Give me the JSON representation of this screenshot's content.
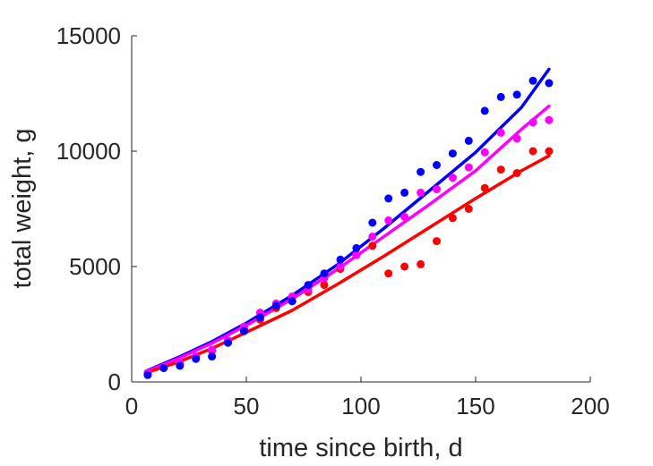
{
  "chart_data": {
    "type": "scatter",
    "xlabel": "time since birth, d",
    "ylabel": "total weight, g",
    "xlim": [
      0,
      200
    ],
    "ylim": [
      0,
      15000
    ],
    "x_ticks": [
      0,
      50,
      100,
      150,
      200
    ],
    "y_ticks": [
      0,
      5000,
      10000,
      15000
    ],
    "grid": false,
    "legend": "none",
    "series": [
      {
        "color": "#0000ff",
        "points": {
          "x": [
            7,
            14,
            21,
            28,
            35,
            42,
            49,
            56,
            63,
            70,
            77,
            84,
            91,
            98,
            105,
            112,
            119,
            126,
            133,
            140,
            147,
            154,
            161,
            168,
            175,
            182
          ],
          "y": [
            300,
            600,
            700,
            1000,
            1100,
            1700,
            2200,
            2800,
            3300,
            3500,
            4200,
            4700,
            5300,
            5800,
            6900,
            7950,
            8200,
            9100,
            9400,
            9900,
            10450,
            11750,
            12350,
            12450,
            13050,
            12950
          ]
        },
        "fit": {
          "x": [
            7,
            20,
            35,
            50,
            70,
            90,
            110,
            130,
            150,
            170,
            182
          ],
          "y": [
            500,
            1050,
            1750,
            2550,
            3750,
            5100,
            6650,
            8300,
            9950,
            11900,
            13550
          ]
        }
      },
      {
        "color": "#ff00ff",
        "points": {
          "x": [
            7,
            14,
            21,
            28,
            35,
            42,
            49,
            56,
            63,
            70,
            77,
            84,
            91,
            98,
            105,
            112,
            119,
            126,
            133,
            140,
            147,
            154,
            161,
            168,
            175,
            182
          ],
          "y": [
            400,
            650,
            800,
            1100,
            1400,
            1800,
            2400,
            3000,
            3400,
            3700,
            4000,
            4500,
            5000,
            5500,
            6300,
            7000,
            7150,
            8200,
            8350,
            8850,
            9300,
            9950,
            10800,
            10550,
            11250,
            11350
          ]
        },
        "fit": {
          "x": [
            7,
            20,
            35,
            50,
            70,
            90,
            110,
            130,
            150,
            170,
            182
          ],
          "y": [
            480,
            1000,
            1680,
            2450,
            3600,
            4900,
            6300,
            7700,
            9150,
            10950,
            11950
          ]
        }
      },
      {
        "color": "#ff0000",
        "points": {
          "x": [
            7,
            14,
            21,
            28,
            35,
            42,
            49,
            56,
            63,
            70,
            77,
            84,
            91,
            98,
            105,
            112,
            119,
            126,
            133,
            140,
            147,
            154,
            161,
            168,
            175,
            182
          ],
          "y": [
            350,
            600,
            750,
            1050,
            1350,
            1700,
            2300,
            2700,
            3200,
            3500,
            3900,
            4200,
            4900,
            5500,
            5900,
            4700,
            5000,
            5100,
            6100,
            7100,
            7500,
            8400,
            9200,
            9050,
            10000,
            10000
          ]
        },
        "fit": {
          "x": [
            7,
            20,
            35,
            50,
            70,
            90,
            110,
            130,
            150,
            170,
            182
          ],
          "y": [
            420,
            850,
            1450,
            2150,
            3100,
            4250,
            5450,
            6700,
            7950,
            9150,
            9800
          ]
        }
      }
    ]
  }
}
